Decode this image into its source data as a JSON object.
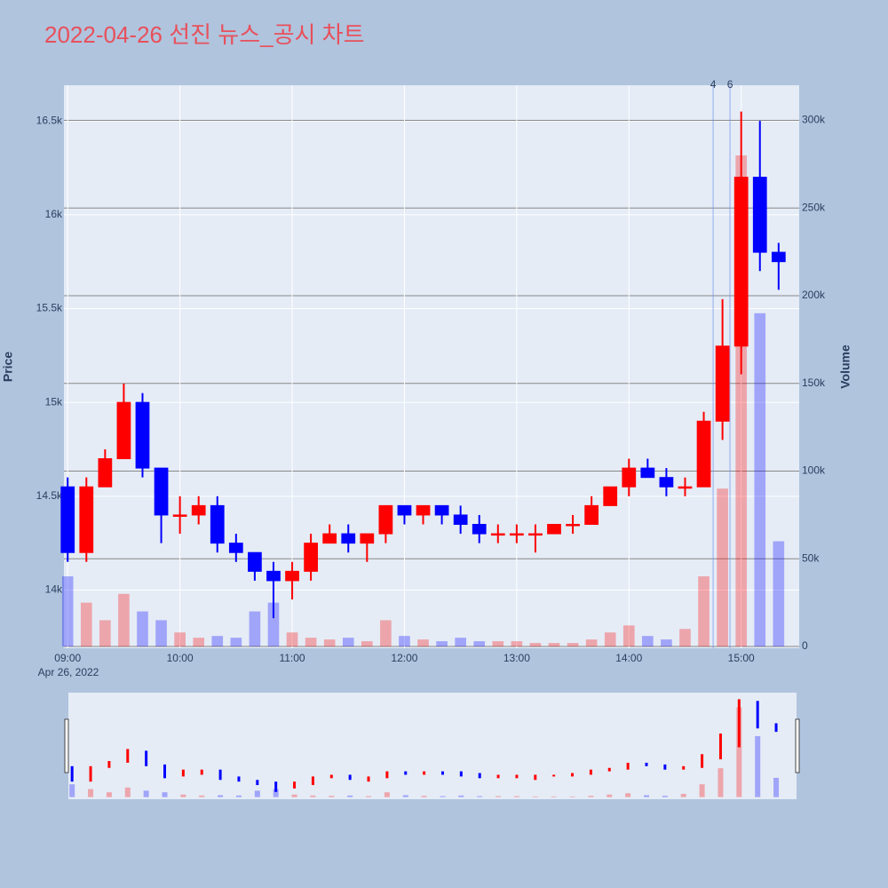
{
  "chart_data": {
    "type": "candlestick",
    "title": "2022-04-26 선진 뉴스_공시 차트",
    "y_title": "Price",
    "y2_title": "Volume",
    "x_date_label": "Apr 26, 2022",
    "increasing_color": "#ff0000",
    "decreasing_color": "#0000ff",
    "x": [
      "09:00",
      "09:10",
      "09:20",
      "09:30",
      "09:40",
      "09:50",
      "10:00",
      "10:10",
      "10:20",
      "10:30",
      "10:40",
      "10:50",
      "11:00",
      "11:10",
      "11:20",
      "11:30",
      "11:40",
      "11:50",
      "12:00",
      "12:10",
      "12:20",
      "12:30",
      "12:40",
      "12:50",
      "13:00",
      "13:10",
      "13:20",
      "13:30",
      "13:40",
      "13:50",
      "14:00",
      "14:10",
      "14:20",
      "14:30",
      "14:40",
      "14:50",
      "15:00",
      "15:10",
      "15:20"
    ],
    "open": [
      14550,
      14200,
      14550,
      14700,
      15000,
      14650,
      14400,
      14400,
      14450,
      14250,
      14200,
      14100,
      14050,
      14100,
      14250,
      14300,
      14250,
      14300,
      14450,
      14400,
      14450,
      14400,
      14350,
      14300,
      14300,
      14300,
      14300,
      14350,
      14350,
      14450,
      14550,
      14650,
      14600,
      14550,
      14550,
      14900,
      15300,
      16200,
      15800
    ],
    "high": [
      14600,
      14600,
      14750,
      15100,
      15050,
      14650,
      14500,
      14500,
      14500,
      14300,
      14200,
      14150,
      14150,
      14300,
      14350,
      14350,
      14300,
      14450,
      14450,
      14450,
      14450,
      14450,
      14400,
      14350,
      14350,
      14350,
      14350,
      14400,
      14500,
      14550,
      14700,
      14700,
      14650,
      14600,
      14950,
      15550,
      16550,
      16500,
      15850
    ],
    "low": [
      14150,
      14150,
      14550,
      14700,
      14600,
      14250,
      14300,
      14350,
      14200,
      14150,
      14050,
      13850,
      13950,
      14050,
      14250,
      14200,
      14150,
      14250,
      14350,
      14350,
      14350,
      14300,
      14250,
      14250,
      14250,
      14200,
      14300,
      14300,
      14350,
      14450,
      14500,
      14600,
      14500,
      14500,
      14550,
      14800,
      15150,
      15700,
      15600
    ],
    "close": [
      14200,
      14550,
      14700,
      15000,
      14650,
      14400,
      14400,
      14450,
      14250,
      14200,
      14100,
      14050,
      14100,
      14250,
      14300,
      14250,
      14300,
      14450,
      14400,
      14450,
      14400,
      14350,
      14300,
      14300,
      14300,
      14300,
      14350,
      14350,
      14450,
      14550,
      14650,
      14600,
      14550,
      14550,
      14900,
      15300,
      16200,
      15800,
      15750
    ],
    "volume": [
      40000,
      25000,
      15000,
      30000,
      20000,
      15000,
      8000,
      5000,
      6000,
      5000,
      20000,
      25000,
      8000,
      5000,
      4000,
      5000,
      3000,
      15000,
      6000,
      4000,
      3000,
      5000,
      3000,
      3000,
      3000,
      2000,
      2000,
      2000,
      4000,
      8000,
      12000,
      6000,
      4000,
      10000,
      40000,
      90000,
      280000,
      190000,
      60000
    ],
    "xlim": [
      "08:58",
      "15:31"
    ],
    "xticks": [
      "09:00",
      "10:00",
      "11:00",
      "12:00",
      "13:00",
      "14:00",
      "15:00"
    ],
    "ylim": [
      13690,
      16690
    ],
    "yticks": [
      {
        "value": 14000,
        "label": "14k"
      },
      {
        "value": 14500,
        "label": "14.5k"
      },
      {
        "value": 15000,
        "label": "15k"
      },
      {
        "value": 15500,
        "label": "15.5k"
      },
      {
        "value": 16000,
        "label": "16k"
      },
      {
        "value": 16500,
        "label": "16.5k"
      }
    ],
    "y2lim": [
      -1000,
      320000
    ],
    "y2ticks": [
      0,
      {
        "value": 50000,
        "label": "50k"
      },
      {
        "value": 100000,
        "label": "100k"
      },
      {
        "value": 150000,
        "label": "150k"
      },
      {
        "value": 200000,
        "label": "200k"
      },
      {
        "value": 250000,
        "label": "250k"
      },
      {
        "value": 300000,
        "label": "300k"
      }
    ],
    "annotations": [
      {
        "x": "14:45",
        "text": "4"
      },
      {
        "x": "14:54",
        "text": "6"
      }
    ],
    "rangeslider": true
  }
}
